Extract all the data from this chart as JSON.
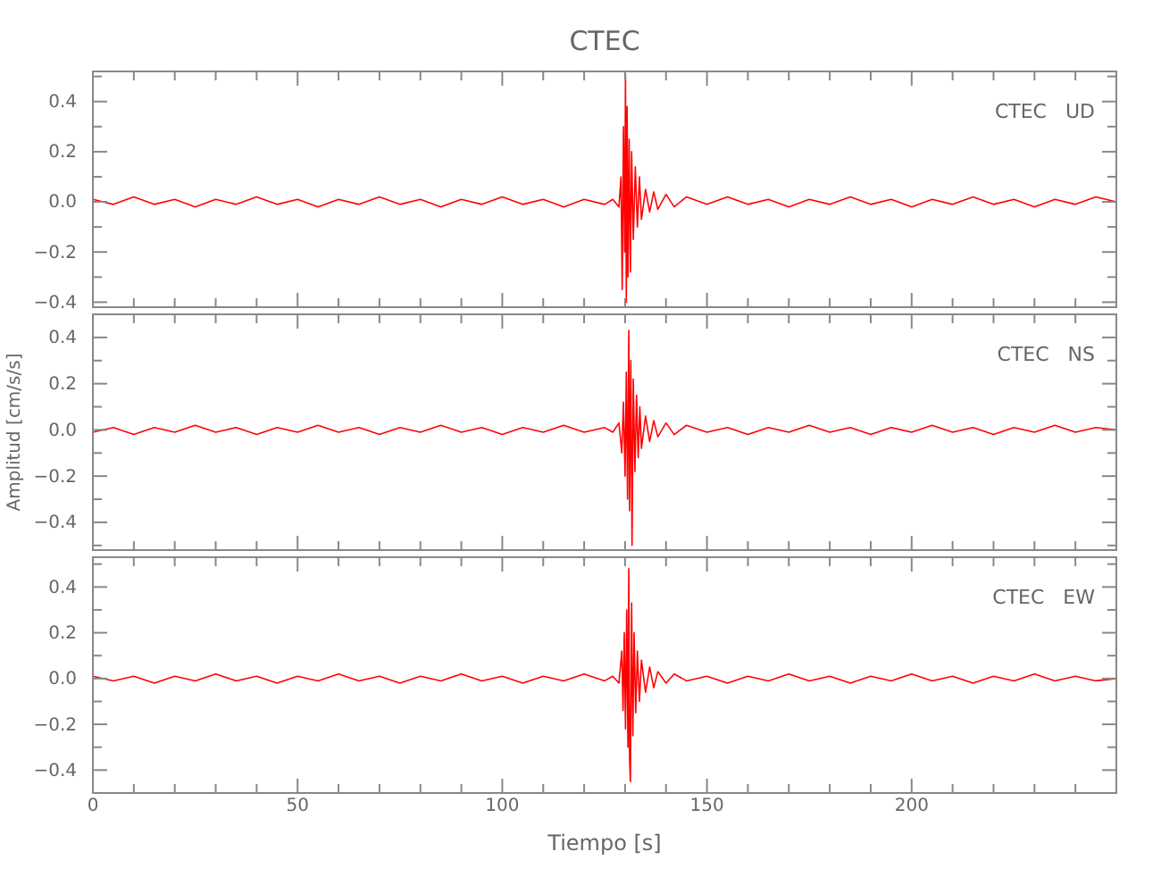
{
  "chart_data": [
    {
      "type": "line",
      "title": "CTEC",
      "annotations": [
        "CTEC   UD"
      ],
      "tick_labels": "y",
      "xlim": [
        0,
        250
      ],
      "ylim": [
        -0.42,
        0.52
      ],
      "xticks": [
        0,
        {
          "value": 10,
          "label": null
        },
        {
          "value": 20,
          "label": null
        },
        {
          "value": 30,
          "label": null
        },
        {
          "value": 40,
          "label": null
        },
        50,
        {
          "value": 60,
          "label": null
        },
        {
          "value": 70,
          "label": null
        },
        {
          "value": 80,
          "label": null
        },
        {
          "value": 90,
          "label": null
        },
        100,
        {
          "value": 110,
          "label": null
        },
        {
          "value": 120,
          "label": null
        },
        {
          "value": 130,
          "label": null
        },
        {
          "value": 140,
          "label": null
        },
        150,
        {
          "value": 160,
          "label": null
        },
        {
          "value": 170,
          "label": null
        },
        {
          "value": 180,
          "label": null
        },
        {
          "value": 190,
          "label": null
        },
        200,
        {
          "value": 210,
          "label": null
        },
        {
          "value": 220,
          "label": null
        },
        {
          "value": 230,
          "label": null
        },
        {
          "value": 240,
          "label": null
        }
      ],
      "yticks": [
        {
          "value": -0.4,
          "label": "−0.4"
        },
        {
          "value": -0.3,
          "label": null
        },
        {
          "value": -0.2,
          "label": "−0.2"
        },
        {
          "value": -0.1,
          "label": null
        },
        {
          "value": 0,
          "label": "0.0"
        },
        {
          "value": 0.1,
          "label": null
        },
        {
          "value": 0.2,
          "label": "0.2"
        },
        {
          "value": 0.3,
          "label": null
        },
        {
          "value": 0.4,
          "label": "0.4"
        },
        {
          "value": 0.5,
          "label": null
        }
      ],
      "series": [
        {
          "color": "#ff0000",
          "x": [
            0,
            5,
            10,
            15,
            20,
            25,
            30,
            35,
            40,
            45,
            50,
            55,
            60,
            65,
            70,
            75,
            80,
            85,
            90,
            95,
            100,
            105,
            110,
            115,
            120,
            125,
            127,
            128.5,
            129,
            129.3,
            129.6,
            129.9,
            130.1,
            130.3,
            130.5,
            130.7,
            131,
            131.3,
            131.6,
            132,
            132.5,
            133,
            133.5,
            134,
            135,
            136,
            137,
            138,
            140,
            142,
            145,
            150,
            155,
            160,
            165,
            170,
            175,
            180,
            185,
            190,
            195,
            200,
            205,
            210,
            215,
            220,
            225,
            230,
            235,
            240,
            245,
            250
          ],
          "values": [
            0.01,
            -0.01,
            0.02,
            -0.01,
            0.01,
            -0.02,
            0.01,
            -0.01,
            0.02,
            -0.01,
            0.01,
            -0.02,
            0.01,
            -0.01,
            0.02,
            -0.01,
            0.01,
            -0.02,
            0.01,
            -0.01,
            0.02,
            -0.01,
            0.01,
            -0.02,
            0.01,
            -0.01,
            0.01,
            -0.02,
            0.1,
            -0.35,
            0.3,
            -0.2,
            0.51,
            -0.4,
            0.38,
            -0.3,
            0.25,
            -0.28,
            0.2,
            -0.15,
            0.14,
            -0.1,
            0.1,
            -0.07,
            0.05,
            -0.04,
            0.04,
            -0.03,
            0.03,
            -0.02,
            0.02,
            -0.01,
            0.02,
            -0.01,
            0.01,
            -0.02,
            0.01,
            -0.01,
            0.02,
            -0.01,
            0.01,
            -0.02,
            0.01,
            -0.01,
            0.02,
            -0.01,
            0.01,
            -0.02,
            0.01,
            -0.01,
            0.02,
            0
          ]
        }
      ]
    },
    {
      "type": "line",
      "ylabel": "Amplitud [cm/s/s]",
      "annotations": [
        "CTEC   NS"
      ],
      "tick_labels": "y",
      "xlim": [
        0,
        250
      ],
      "ylim": [
        -0.52,
        0.5
      ],
      "xticks": [
        0,
        {
          "value": 10,
          "label": null
        },
        {
          "value": 20,
          "label": null
        },
        {
          "value": 30,
          "label": null
        },
        {
          "value": 40,
          "label": null
        },
        50,
        {
          "value": 60,
          "label": null
        },
        {
          "value": 70,
          "label": null
        },
        {
          "value": 80,
          "label": null
        },
        {
          "value": 90,
          "label": null
        },
        100,
        {
          "value": 110,
          "label": null
        },
        {
          "value": 120,
          "label": null
        },
        {
          "value": 130,
          "label": null
        },
        {
          "value": 140,
          "label": null
        },
        150,
        {
          "value": 160,
          "label": null
        },
        {
          "value": 170,
          "label": null
        },
        {
          "value": 180,
          "label": null
        },
        {
          "value": 190,
          "label": null
        },
        200,
        {
          "value": 210,
          "label": null
        },
        {
          "value": 220,
          "label": null
        },
        {
          "value": 230,
          "label": null
        },
        {
          "value": 240,
          "label": null
        }
      ],
      "yticks": [
        {
          "value": -0.5,
          "label": null
        },
        {
          "value": -0.4,
          "label": "−0.4"
        },
        {
          "value": -0.3,
          "label": null
        },
        {
          "value": -0.2,
          "label": "−0.2"
        },
        {
          "value": -0.1,
          "label": null
        },
        {
          "value": 0,
          "label": "0.0"
        },
        {
          "value": 0.1,
          "label": null
        },
        {
          "value": 0.2,
          "label": "0.2"
        },
        {
          "value": 0.3,
          "label": null
        },
        {
          "value": 0.4,
          "label": "0.4"
        }
      ],
      "series": [
        {
          "color": "#ff0000",
          "x": [
            0,
            5,
            10,
            15,
            20,
            25,
            30,
            35,
            40,
            45,
            50,
            55,
            60,
            65,
            70,
            75,
            80,
            85,
            90,
            95,
            100,
            105,
            110,
            115,
            120,
            125,
            127,
            128.5,
            129.2,
            129.6,
            130,
            130.3,
            130.6,
            130.9,
            131.1,
            131.4,
            131.7,
            132,
            132.4,
            132.8,
            133.2,
            133.6,
            134,
            135,
            136,
            137,
            138,
            140,
            142,
            145,
            150,
            155,
            160,
            165,
            170,
            175,
            180,
            185,
            190,
            195,
            200,
            205,
            210,
            215,
            220,
            225,
            230,
            235,
            240,
            245,
            250
          ],
          "values": [
            -0.01,
            0.01,
            -0.02,
            0.01,
            -0.01,
            0.02,
            -0.01,
            0.01,
            -0.02,
            0.01,
            -0.01,
            0.02,
            -0.01,
            0.01,
            -0.02,
            0.01,
            -0.01,
            0.02,
            -0.01,
            0.01,
            -0.02,
            0.01,
            -0.01,
            0.02,
            -0.01,
            0.01,
            -0.01,
            0.03,
            -0.1,
            0.12,
            -0.2,
            0.25,
            -0.3,
            0.43,
            -0.35,
            0.3,
            -0.5,
            0.22,
            -0.18,
            0.15,
            -0.12,
            0.1,
            -0.08,
            0.06,
            -0.05,
            0.04,
            -0.03,
            0.03,
            -0.02,
            0.02,
            -0.01,
            0.01,
            -0.02,
            0.01,
            -0.01,
            0.02,
            -0.01,
            0.01,
            -0.02,
            0.01,
            -0.01,
            0.02,
            -0.01,
            0.01,
            -0.02,
            0.01,
            -0.01,
            0.02,
            -0.01,
            0.01,
            0
          ]
        }
      ]
    },
    {
      "type": "line",
      "xlabel": "Tiempo [s]",
      "annotations": [
        "CTEC   EW"
      ],
      "xlim": [
        0,
        250
      ],
      "ylim": [
        -0.5,
        0.53
      ],
      "xticks": [
        0,
        {
          "value": 10,
          "label": null
        },
        {
          "value": 20,
          "label": null
        },
        {
          "value": 30,
          "label": null
        },
        {
          "value": 40,
          "label": null
        },
        50,
        {
          "value": 60,
          "label": null
        },
        {
          "value": 70,
          "label": null
        },
        {
          "value": 80,
          "label": null
        },
        {
          "value": 90,
          "label": null
        },
        100,
        {
          "value": 110,
          "label": null
        },
        {
          "value": 120,
          "label": null
        },
        {
          "value": 130,
          "label": null
        },
        {
          "value": 140,
          "label": null
        },
        150,
        {
          "value": 160,
          "label": null
        },
        {
          "value": 170,
          "label": null
        },
        {
          "value": 180,
          "label": null
        },
        {
          "value": 190,
          "label": null
        },
        200,
        {
          "value": 210,
          "label": null
        },
        {
          "value": 220,
          "label": null
        },
        {
          "value": 230,
          "label": null
        },
        {
          "value": 240,
          "label": null
        }
      ],
      "yticks": [
        {
          "value": -0.4,
          "label": "−0.4"
        },
        {
          "value": -0.3,
          "label": null
        },
        {
          "value": -0.2,
          "label": "−0.2"
        },
        {
          "value": -0.1,
          "label": null
        },
        {
          "value": 0,
          "label": "0.0"
        },
        {
          "value": 0.1,
          "label": null
        },
        {
          "value": 0.2,
          "label": "0.2"
        },
        {
          "value": 0.3,
          "label": null
        },
        {
          "value": 0.4,
          "label": "0.4"
        },
        {
          "value": 0.5,
          "label": null
        }
      ],
      "series": [
        {
          "color": "#ff0000",
          "x": [
            0,
            5,
            10,
            15,
            20,
            25,
            30,
            35,
            40,
            45,
            50,
            55,
            60,
            65,
            70,
            75,
            80,
            85,
            90,
            95,
            100,
            105,
            110,
            115,
            120,
            125,
            127,
            128.5,
            129.2,
            129.5,
            129.8,
            130.1,
            130.4,
            130.7,
            130.9,
            131.1,
            131.3,
            131.6,
            131.9,
            132.2,
            132.6,
            133,
            133.5,
            134,
            135,
            136,
            137,
            138,
            140,
            142,
            145,
            150,
            155,
            160,
            165,
            170,
            175,
            180,
            185,
            190,
            195,
            200,
            205,
            210,
            215,
            220,
            225,
            230,
            235,
            240,
            245,
            250
          ],
          "values": [
            0.01,
            -0.01,
            0.01,
            -0.02,
            0.01,
            -0.01,
            0.02,
            -0.01,
            0.01,
            -0.02,
            0.01,
            -0.01,
            0.02,
            -0.01,
            0.01,
            -0.02,
            0.01,
            -0.01,
            0.02,
            -0.01,
            0.01,
            -0.02,
            0.01,
            -0.01,
            0.02,
            -0.01,
            0.01,
            -0.02,
            0.12,
            -0.14,
            0.2,
            -0.22,
            0.3,
            -0.3,
            0.48,
            -0.35,
            -0.45,
            0.33,
            -0.25,
            0.2,
            -0.15,
            0.12,
            -0.1,
            0.08,
            -0.06,
            0.05,
            -0.04,
            0.03,
            -0.02,
            0.02,
            -0.01,
            0.01,
            -0.02,
            0.01,
            -0.01,
            0.02,
            -0.01,
            0.01,
            -0.02,
            0.01,
            -0.01,
            0.02,
            -0.01,
            0.01,
            -0.02,
            0.01,
            -0.01,
            0.02,
            -0.01,
            0.01,
            -0.01,
            0
          ]
        }
      ]
    }
  ]
}
